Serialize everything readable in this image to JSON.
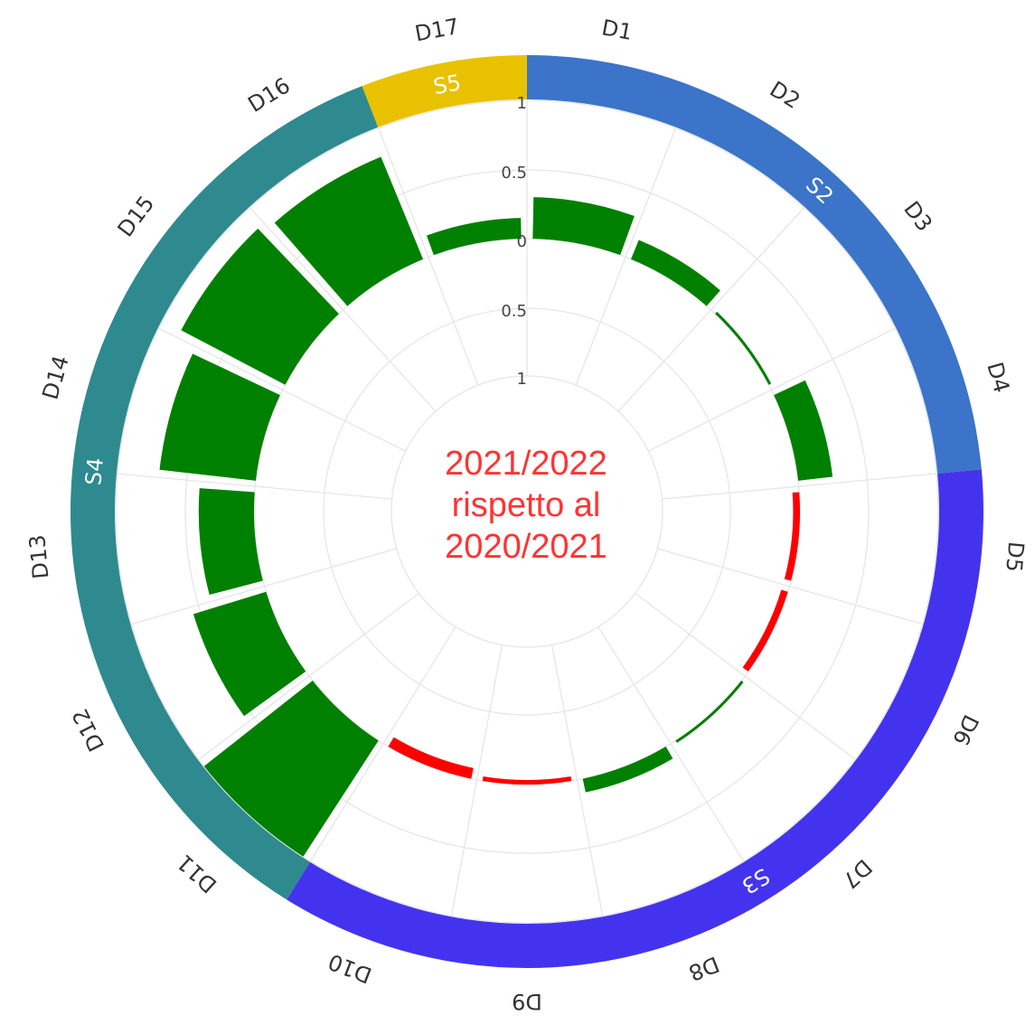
{
  "chart_data": {
    "type": "radial-bar",
    "center_title": [
      "2021/2022",
      "rispetto al",
      "2020/2021"
    ],
    "scale_ticks": [
      "1",
      "0.5",
      "0",
      "0.5",
      "1"
    ],
    "segments": [
      {
        "label": "D1",
        "value": 0.3
      },
      {
        "label": "D2",
        "value": 0.15
      },
      {
        "label": "D3",
        "value": 0.02
      },
      {
        "label": "D4",
        "value": 0.25
      },
      {
        "label": "D5",
        "value": -0.05
      },
      {
        "label": "D6",
        "value": -0.05
      },
      {
        "label": "D7",
        "value": 0.0
      },
      {
        "label": "D8",
        "value": 0.1
      },
      {
        "label": "D9",
        "value": -0.03
      },
      {
        "label": "D10",
        "value": -0.08
      },
      {
        "label": "D11",
        "value": 1.0
      },
      {
        "label": "D12",
        "value": 0.55
      },
      {
        "label": "D13",
        "value": 0.4
      },
      {
        "label": "D14",
        "value": 0.7
      },
      {
        "label": "D15",
        "value": 0.85
      },
      {
        "label": "D16",
        "value": 0.8
      },
      {
        "label": "D17",
        "value": 0.15
      }
    ],
    "groups": [
      {
        "label": "S2",
        "from": "D1",
        "to": "D4",
        "color": "#3b74c8"
      },
      {
        "label": "S3",
        "from": "D5",
        "to": "D10",
        "color": "#4433ee"
      },
      {
        "label": "S4",
        "from": "D11",
        "to": "D16",
        "color": "#2e8a8f"
      },
      {
        "label": "S5",
        "from": "D17",
        "to": "D17",
        "color": "#e8c200"
      }
    ],
    "colors": {
      "positive": "#008000",
      "negative": "#ff0000",
      "grid": "#e6e6e6",
      "label": "#333333",
      "center_text": "#ff3333"
    },
    "rlim": [
      -1,
      1
    ]
  }
}
